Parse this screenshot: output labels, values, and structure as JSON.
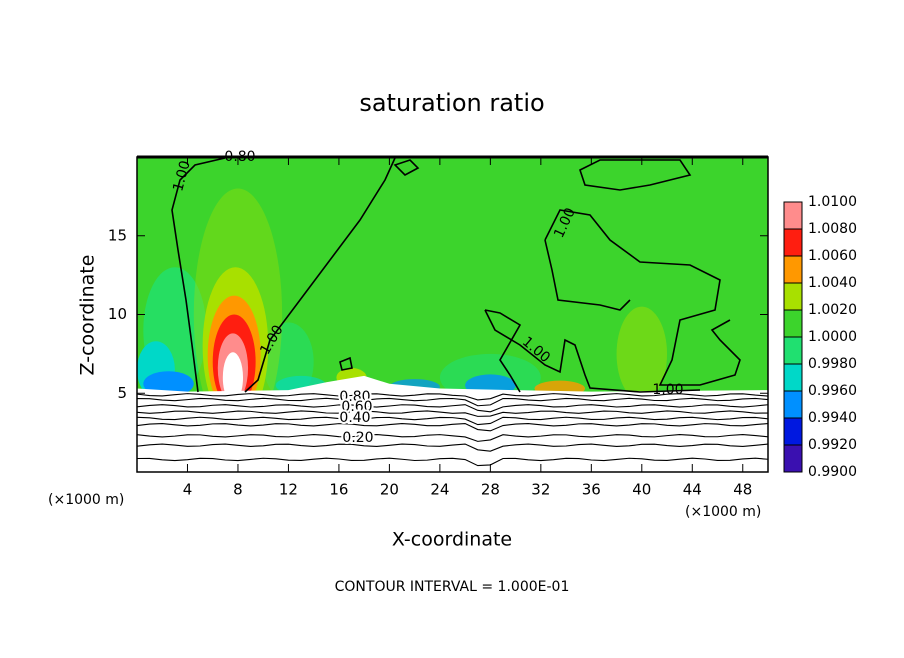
{
  "chart_data": {
    "type": "contour",
    "title": "saturation ratio",
    "x_label": "X-coordinate",
    "y_label": "Z-coordinate",
    "x_unit": "(×1000 m)",
    "note": "CONTOUR INTERVAL = 1.000E-01",
    "xlim": [
      0,
      50
    ],
    "xticks": [
      4,
      8,
      12,
      16,
      20,
      24,
      28,
      32,
      36,
      40,
      44,
      48
    ],
    "ylim": [
      0,
      20
    ],
    "yticks": [
      5,
      10,
      15
    ],
    "contour_labels": [
      "0.80",
      "1.00",
      "1.00",
      "1.00",
      "1.00",
      "1.00",
      "0.80",
      "0.60",
      "0.40",
      "0.20"
    ],
    "colorbar": {
      "lim": [
        0.99,
        1.01
      ],
      "ticks": [
        {
          "value": 0.99,
          "label": "0.9900"
        },
        {
          "value": 0.992,
          "label": "0.9920"
        },
        {
          "value": 0.994,
          "label": "0.9940"
        },
        {
          "value": 0.996,
          "label": "0.9960"
        },
        {
          "value": 0.998,
          "label": "0.9980"
        },
        {
          "value": 1.0,
          "label": "1.0000"
        },
        {
          "value": 1.002,
          "label": "1.0020"
        },
        {
          "value": 1.004,
          "label": "1.0040"
        },
        {
          "value": 1.006,
          "label": "1.0060"
        },
        {
          "value": 1.008,
          "label": "1.0080"
        },
        {
          "value": 1.01,
          "label": "1.0100"
        }
      ],
      "colors": [
        "#3a10b0",
        "#0018e0",
        "#0090ff",
        "#00d8c8",
        "#20e070",
        "#3cd42c",
        "#a8e000",
        "#ff9800",
        "#ff1e10",
        "#ff8c8c"
      ]
    }
  }
}
